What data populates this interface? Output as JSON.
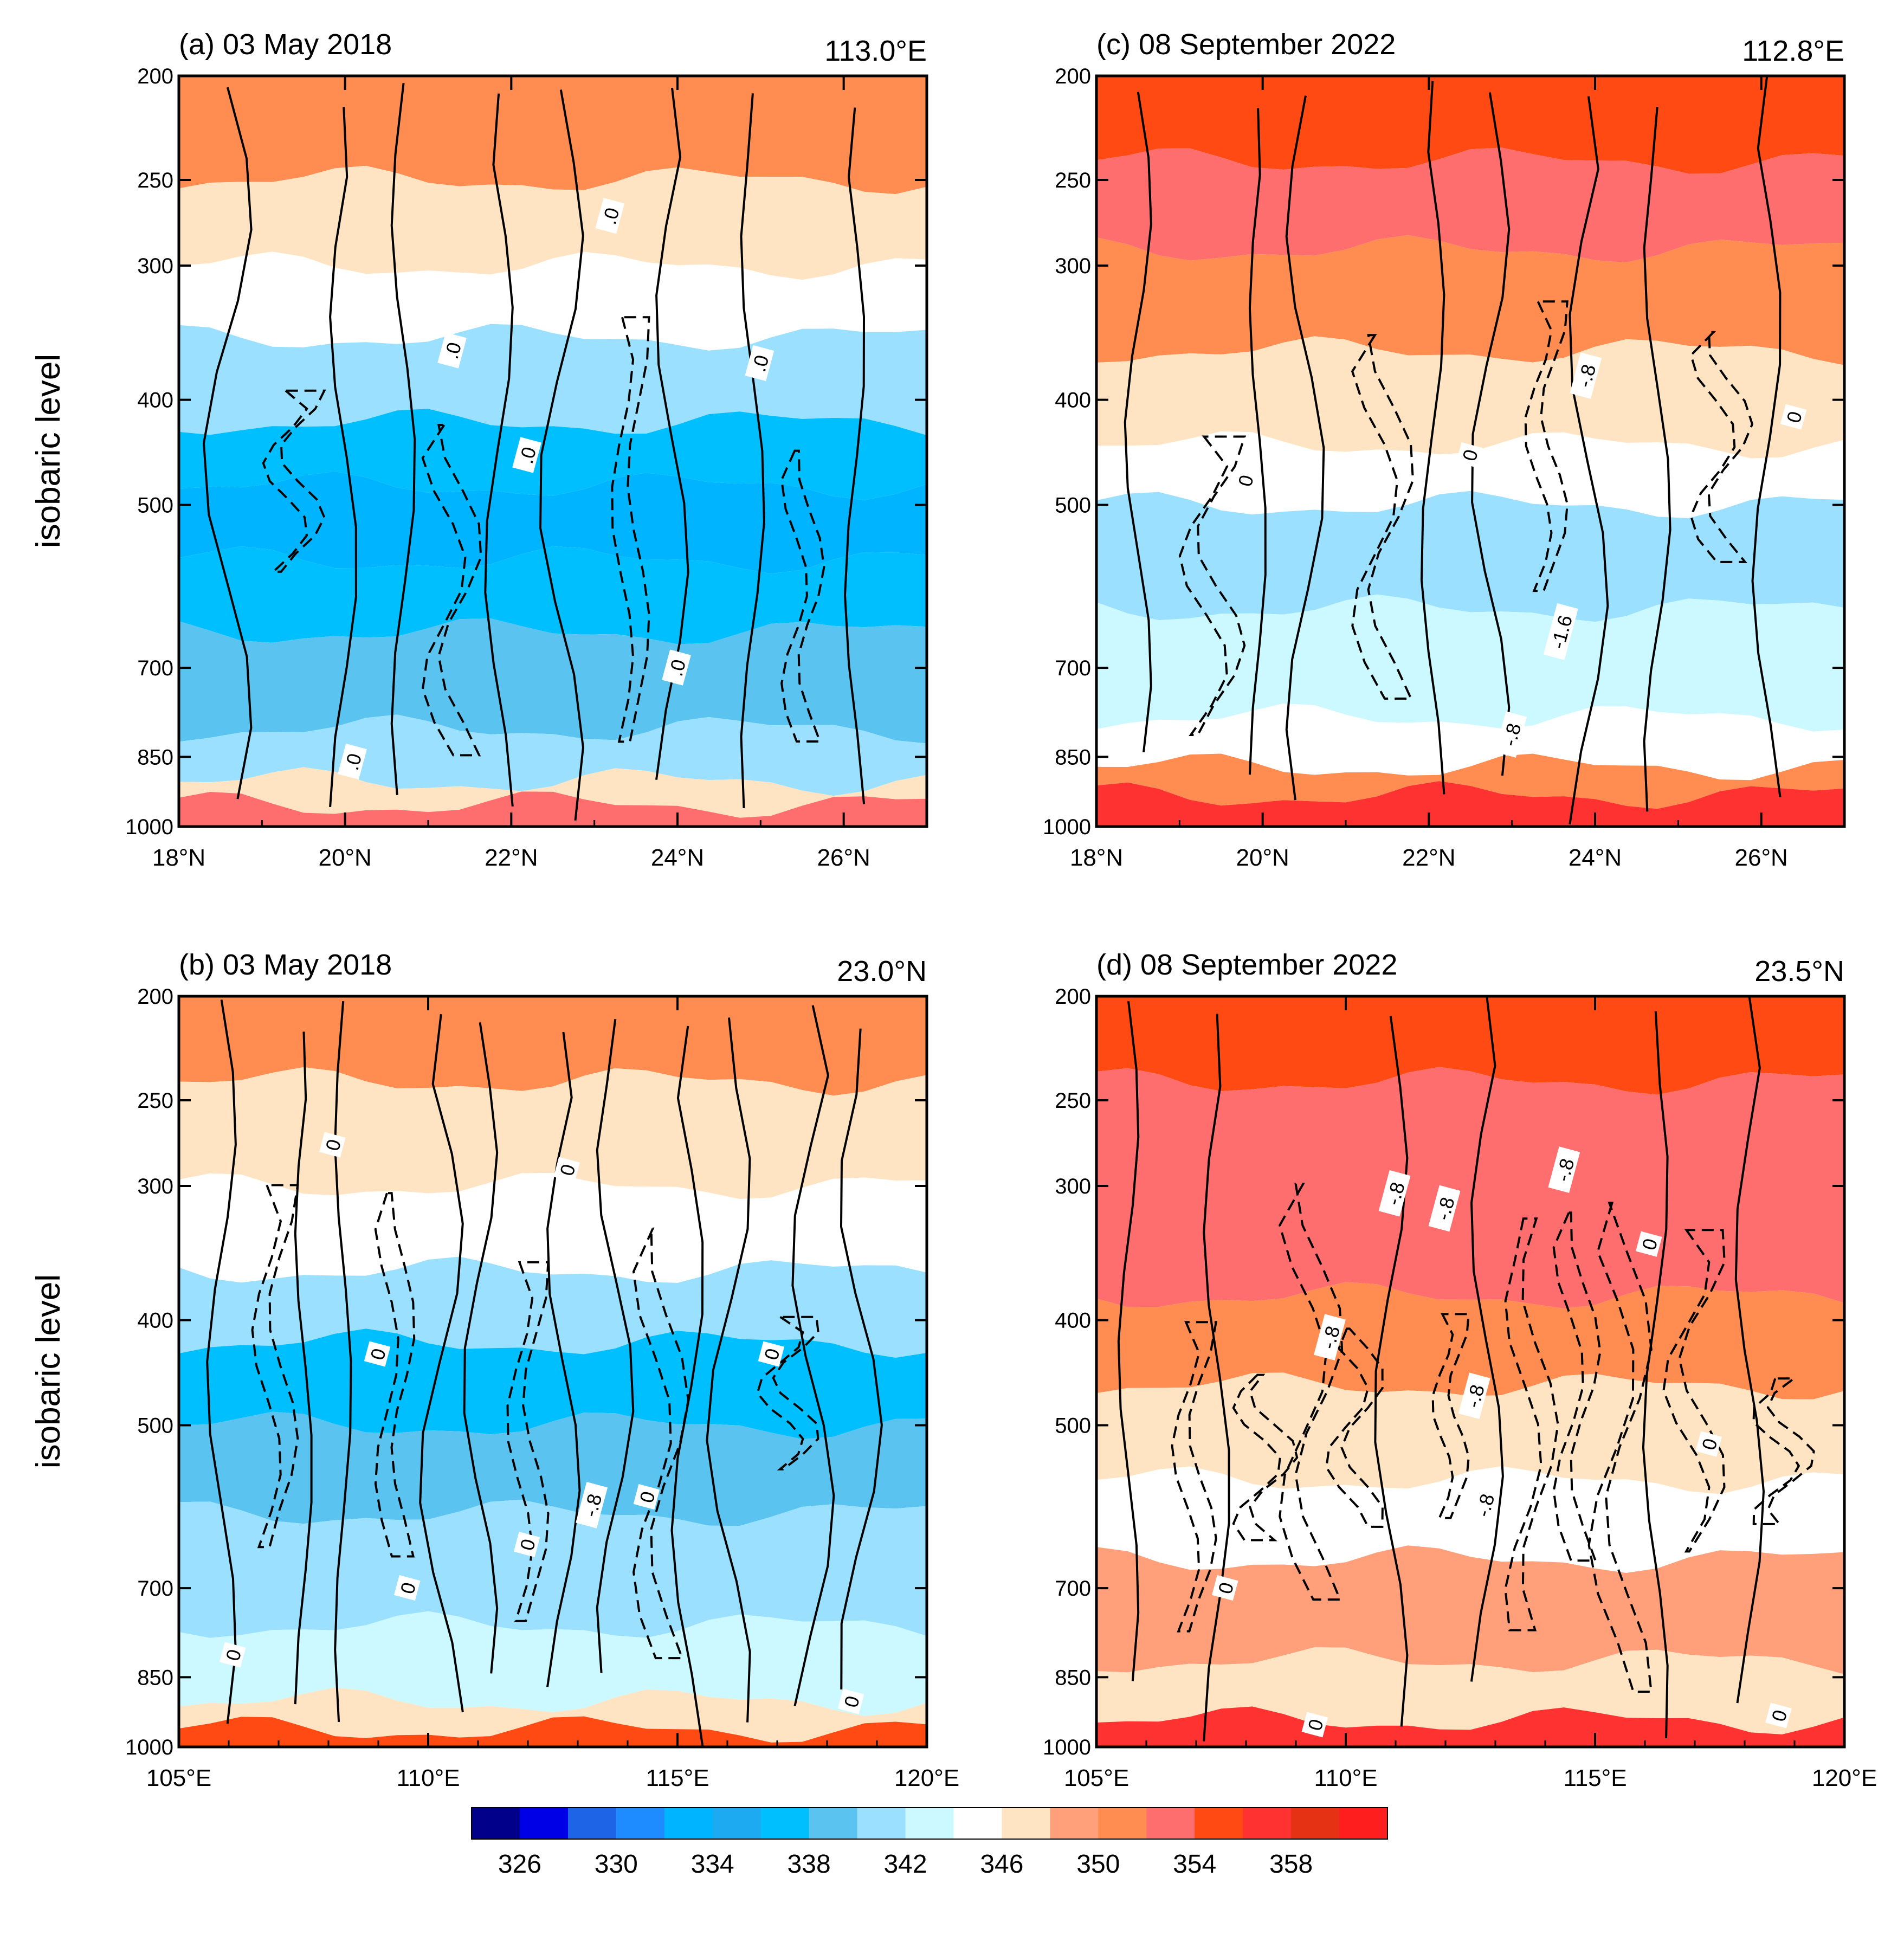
{
  "figure": {
    "y_axis_label": "isobaric level",
    "pressure_levels": [
      200,
      250,
      300,
      400,
      500,
      700,
      850,
      1000
    ]
  },
  "chart_data": [
    {
      "id": "a",
      "type": "heatmap",
      "title": "(a) 03 May 2018",
      "cross_section": "113.0°E",
      "x_unit": "latitude",
      "x_ticks": [
        {
          "value": 18,
          "label": "18°N"
        },
        {
          "value": 20,
          "label": "20°N"
        },
        {
          "value": 22,
          "label": "22°N"
        },
        {
          "value": 24,
          "label": "24°N"
        },
        {
          "value": 26,
          "label": "26°N"
        }
      ],
      "xlim": [
        18,
        27
      ],
      "ylabel": "isobaric level",
      "ylim": [
        1000,
        200
      ],
      "shading_bands": [
        {
          "p_top": 200,
          "p_bot": 250,
          "theta": 350
        },
        {
          "p_top": 250,
          "p_bot": 300,
          "theta": 346
        },
        {
          "p_top": 300,
          "p_bot": 350,
          "theta": 344
        },
        {
          "p_top": 350,
          "p_bot": 420,
          "theta": 340
        },
        {
          "p_top": 420,
          "p_bot": 480,
          "theta": 336
        },
        {
          "p_top": 480,
          "p_bot": 560,
          "theta": 332
        },
        {
          "p_top": 560,
          "p_bot": 650,
          "theta": 336
        },
        {
          "p_top": 650,
          "p_bot": 800,
          "theta": 338
        },
        {
          "p_top": 800,
          "p_bot": 900,
          "theta": 340
        },
        {
          "p_top": 900,
          "p_bot": 950,
          "theta": 346
        },
        {
          "p_top": 950,
          "p_bot": 1000,
          "theta": 352
        }
      ],
      "contour_labels": [
        {
          "x": 23.2,
          "p": 270,
          "text": ".0"
        },
        {
          "x": 21.3,
          "p": 360,
          "text": ".0"
        },
        {
          "x": 25.0,
          "p": 370,
          "text": ".0"
        },
        {
          "x": 22.2,
          "p": 450,
          "text": ".0"
        },
        {
          "x": 24.0,
          "p": 700,
          "text": ".0"
        },
        {
          "x": 20.1,
          "p": 860,
          "text": ".0"
        }
      ]
    },
    {
      "id": "b",
      "type": "heatmap",
      "title": "(b) 03 May 2018",
      "cross_section": "23.0°N",
      "x_unit": "longitude",
      "x_ticks": [
        {
          "value": 105,
          "label": "105°E"
        },
        {
          "value": 110,
          "label": "110°E"
        },
        {
          "value": 115,
          "label": "115°E"
        },
        {
          "value": 120,
          "label": "120°E"
        }
      ],
      "xlim": [
        105,
        120
      ],
      "ylabel": "isobaric level",
      "ylim": [
        1000,
        200
      ],
      "shading_bands": [
        {
          "p_top": 200,
          "p_bot": 240,
          "theta": 350
        },
        {
          "p_top": 240,
          "p_bot": 300,
          "theta": 346
        },
        {
          "p_top": 300,
          "p_bot": 360,
          "theta": 344
        },
        {
          "p_top": 360,
          "p_bot": 420,
          "theta": 340
        },
        {
          "p_top": 420,
          "p_bot": 500,
          "theta": 336
        },
        {
          "p_top": 500,
          "p_bot": 600,
          "theta": 338
        },
        {
          "p_top": 600,
          "p_bot": 760,
          "theta": 340
        },
        {
          "p_top": 760,
          "p_bot": 900,
          "theta": 342
        },
        {
          "p_top": 900,
          "p_bot": 960,
          "theta": 346
        },
        {
          "p_top": 960,
          "p_bot": 1000,
          "theta": 354
        }
      ],
      "contour_labels": [
        {
          "x": 108.1,
          "p": 275,
          "text": "0"
        },
        {
          "x": 112.8,
          "p": 290,
          "text": "0"
        },
        {
          "x": 109.0,
          "p": 430,
          "text": "0"
        },
        {
          "x": 116.9,
          "p": 430,
          "text": "0"
        },
        {
          "x": 113.3,
          "p": 590,
          "text": "-.8"
        },
        {
          "x": 114.4,
          "p": 580,
          "text": "0"
        },
        {
          "x": 112.0,
          "p": 640,
          "text": "0"
        },
        {
          "x": 109.6,
          "p": 700,
          "text": "0"
        },
        {
          "x": 106.1,
          "p": 810,
          "text": "0"
        },
        {
          "x": 118.5,
          "p": 900,
          "text": "0"
        }
      ]
    },
    {
      "id": "c",
      "type": "heatmap",
      "title": "(c) 08 September 2022",
      "cross_section": "112.8°E",
      "x_unit": "latitude",
      "x_ticks": [
        {
          "value": 18,
          "label": "18°N"
        },
        {
          "value": 20,
          "label": "20°N"
        },
        {
          "value": 22,
          "label": "22°N"
        },
        {
          "value": 24,
          "label": "24°N"
        },
        {
          "value": 26,
          "label": "26°N"
        }
      ],
      "xlim": [
        18,
        27
      ],
      "ylabel": "isobaric level",
      "ylim": [
        1000,
        200
      ],
      "shading_bands": [
        {
          "p_top": 200,
          "p_bot": 240,
          "theta": 354
        },
        {
          "p_top": 240,
          "p_bot": 290,
          "theta": 352
        },
        {
          "p_top": 290,
          "p_bot": 360,
          "theta": 350
        },
        {
          "p_top": 360,
          "p_bot": 440,
          "theta": 346
        },
        {
          "p_top": 440,
          "p_bot": 500,
          "theta": 344
        },
        {
          "p_top": 500,
          "p_bot": 620,
          "theta": 340
        },
        {
          "p_top": 620,
          "p_bot": 780,
          "theta": 342
        },
        {
          "p_top": 780,
          "p_bot": 870,
          "theta": 344
        },
        {
          "p_top": 870,
          "p_bot": 930,
          "theta": 350
        },
        {
          "p_top": 930,
          "p_bot": 1000,
          "theta": 356
        }
      ],
      "contour_labels": [
        {
          "x": 23.9,
          "p": 380,
          "text": "-.8"
        },
        {
          "x": 26.4,
          "p": 415,
          "text": "0"
        },
        {
          "x": 22.5,
          "p": 450,
          "text": "0"
        },
        {
          "x": 19.8,
          "p": 475,
          "text": "0"
        },
        {
          "x": 23.6,
          "p": 650,
          "text": "-1.6"
        },
        {
          "x": 23.0,
          "p": 810,
          "text": "-.8"
        }
      ]
    },
    {
      "id": "d",
      "type": "heatmap",
      "title": "(d) 08 September 2022",
      "cross_section": "23.5°N",
      "x_unit": "longitude",
      "x_ticks": [
        {
          "value": 105,
          "label": "105°E"
        },
        {
          "value": 110,
          "label": "110°E"
        },
        {
          "value": 115,
          "label": "115°E"
        },
        {
          "value": 120,
          "label": "120°E"
        }
      ],
      "xlim": [
        105,
        120
      ],
      "ylabel": "isobaric level",
      "ylim": [
        1000,
        200
      ],
      "shading_bands": [
        {
          "p_top": 200,
          "p_bot": 240,
          "theta": 354
        },
        {
          "p_top": 240,
          "p_bot": 380,
          "theta": 352
        },
        {
          "p_top": 380,
          "p_bot": 460,
          "theta": 350
        },
        {
          "p_top": 460,
          "p_bot": 560,
          "theta": 346
        },
        {
          "p_top": 560,
          "p_bot": 660,
          "theta": 344
        },
        {
          "p_top": 660,
          "p_bot": 820,
          "theta": 348
        },
        {
          "p_top": 820,
          "p_bot": 940,
          "theta": 346
        },
        {
          "p_top": 940,
          "p_bot": 1000,
          "theta": 356
        }
      ],
      "contour_labels": [
        {
          "x": 111.0,
          "p": 305,
          "text": "-.8"
        },
        {
          "x": 112.0,
          "p": 315,
          "text": "-.8"
        },
        {
          "x": 114.4,
          "p": 290,
          "text": "-.8"
        },
        {
          "x": 116.1,
          "p": 340,
          "text": "0"
        },
        {
          "x": 109.7,
          "p": 415,
          "text": "-.8"
        },
        {
          "x": 112.6,
          "p": 470,
          "text": "-.8"
        },
        {
          "x": 112.8,
          "p": 590,
          "text": "-.8"
        },
        {
          "x": 117.3,
          "p": 520,
          "text": "0"
        },
        {
          "x": 107.6,
          "p": 700,
          "text": "0"
        },
        {
          "x": 109.4,
          "p": 950,
          "text": "0"
        },
        {
          "x": 118.7,
          "p": 930,
          "text": "0"
        }
      ]
    }
  ],
  "colorbar": {
    "colors": [
      "#00008b",
      "#0000e6",
      "#1e64e6",
      "#1e8cff",
      "#00b4ff",
      "#1eaaf0",
      "#00bfff",
      "#5ac3f0",
      "#9be1ff",
      "#ccf8ff",
      "#ffffff",
      "#ffe4c4",
      "#ffa07a",
      "#ff8c50",
      "#ff6e6e",
      "#ff4a14",
      "#ff3232",
      "#e63214",
      "#ff1e1e"
    ],
    "tick_labels": [
      "326",
      "330",
      "334",
      "338",
      "342",
      "346",
      "350",
      "354",
      "358"
    ]
  }
}
